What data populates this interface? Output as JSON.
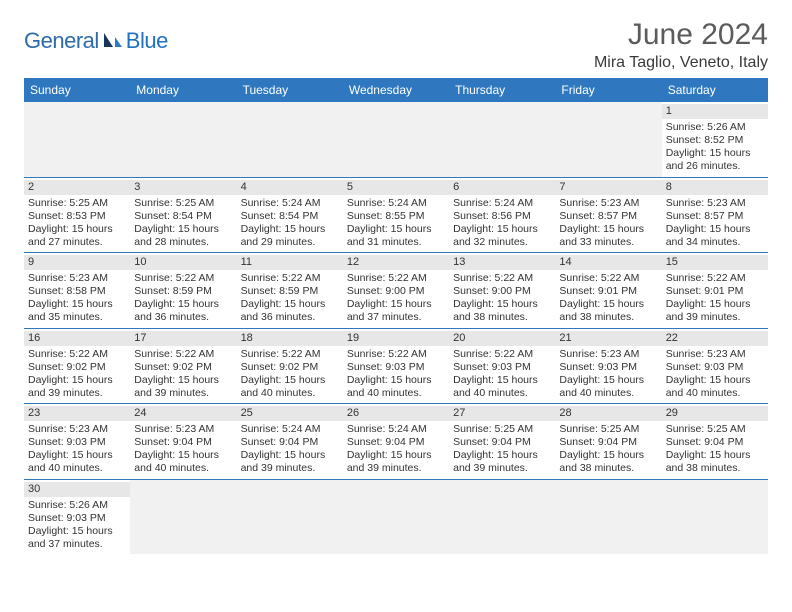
{
  "logo": {
    "text1": "General",
    "text2": "Blue"
  },
  "title": "June 2024",
  "location": "Mira Taglio, Veneto, Italy",
  "colors": {
    "header_bg": "#2f78bf",
    "header_text": "#ffffff",
    "daynum_bg": "#e7e7e7",
    "border": "#2f78bf",
    "title_color": "#5b5b5b",
    "logo_color1": "#2d6bab",
    "logo_color2": "#2072c0",
    "text": "#333333"
  },
  "day_headers": [
    "Sunday",
    "Monday",
    "Tuesday",
    "Wednesday",
    "Thursday",
    "Friday",
    "Saturday"
  ],
  "weeks": [
    [
      null,
      null,
      null,
      null,
      null,
      null,
      {
        "n": "1",
        "rise": "5:26 AM",
        "set": "8:52 PM",
        "dh": 15,
        "dm": 26
      }
    ],
    [
      {
        "n": "2",
        "rise": "5:25 AM",
        "set": "8:53 PM",
        "dh": 15,
        "dm": 27
      },
      {
        "n": "3",
        "rise": "5:25 AM",
        "set": "8:54 PM",
        "dh": 15,
        "dm": 28
      },
      {
        "n": "4",
        "rise": "5:24 AM",
        "set": "8:54 PM",
        "dh": 15,
        "dm": 29
      },
      {
        "n": "5",
        "rise": "5:24 AM",
        "set": "8:55 PM",
        "dh": 15,
        "dm": 31
      },
      {
        "n": "6",
        "rise": "5:24 AM",
        "set": "8:56 PM",
        "dh": 15,
        "dm": 32
      },
      {
        "n": "7",
        "rise": "5:23 AM",
        "set": "8:57 PM",
        "dh": 15,
        "dm": 33
      },
      {
        "n": "8",
        "rise": "5:23 AM",
        "set": "8:57 PM",
        "dh": 15,
        "dm": 34
      }
    ],
    [
      {
        "n": "9",
        "rise": "5:23 AM",
        "set": "8:58 PM",
        "dh": 15,
        "dm": 35
      },
      {
        "n": "10",
        "rise": "5:22 AM",
        "set": "8:59 PM",
        "dh": 15,
        "dm": 36
      },
      {
        "n": "11",
        "rise": "5:22 AM",
        "set": "8:59 PM",
        "dh": 15,
        "dm": 36
      },
      {
        "n": "12",
        "rise": "5:22 AM",
        "set": "9:00 PM",
        "dh": 15,
        "dm": 37
      },
      {
        "n": "13",
        "rise": "5:22 AM",
        "set": "9:00 PM",
        "dh": 15,
        "dm": 38
      },
      {
        "n": "14",
        "rise": "5:22 AM",
        "set": "9:01 PM",
        "dh": 15,
        "dm": 38
      },
      {
        "n": "15",
        "rise": "5:22 AM",
        "set": "9:01 PM",
        "dh": 15,
        "dm": 39
      }
    ],
    [
      {
        "n": "16",
        "rise": "5:22 AM",
        "set": "9:02 PM",
        "dh": 15,
        "dm": 39
      },
      {
        "n": "17",
        "rise": "5:22 AM",
        "set": "9:02 PM",
        "dh": 15,
        "dm": 39
      },
      {
        "n": "18",
        "rise": "5:22 AM",
        "set": "9:02 PM",
        "dh": 15,
        "dm": 40
      },
      {
        "n": "19",
        "rise": "5:22 AM",
        "set": "9:03 PM",
        "dh": 15,
        "dm": 40
      },
      {
        "n": "20",
        "rise": "5:22 AM",
        "set": "9:03 PM",
        "dh": 15,
        "dm": 40
      },
      {
        "n": "21",
        "rise": "5:23 AM",
        "set": "9:03 PM",
        "dh": 15,
        "dm": 40
      },
      {
        "n": "22",
        "rise": "5:23 AM",
        "set": "9:03 PM",
        "dh": 15,
        "dm": 40
      }
    ],
    [
      {
        "n": "23",
        "rise": "5:23 AM",
        "set": "9:03 PM",
        "dh": 15,
        "dm": 40
      },
      {
        "n": "24",
        "rise": "5:23 AM",
        "set": "9:04 PM",
        "dh": 15,
        "dm": 40
      },
      {
        "n": "25",
        "rise": "5:24 AM",
        "set": "9:04 PM",
        "dh": 15,
        "dm": 39
      },
      {
        "n": "26",
        "rise": "5:24 AM",
        "set": "9:04 PM",
        "dh": 15,
        "dm": 39
      },
      {
        "n": "27",
        "rise": "5:25 AM",
        "set": "9:04 PM",
        "dh": 15,
        "dm": 39
      },
      {
        "n": "28",
        "rise": "5:25 AM",
        "set": "9:04 PM",
        "dh": 15,
        "dm": 38
      },
      {
        "n": "29",
        "rise": "5:25 AM",
        "set": "9:04 PM",
        "dh": 15,
        "dm": 38
      }
    ],
    [
      {
        "n": "30",
        "rise": "5:26 AM",
        "set": "9:03 PM",
        "dh": 15,
        "dm": 37
      },
      null,
      null,
      null,
      null,
      null,
      null
    ]
  ],
  "labels": {
    "sunrise": "Sunrise:",
    "sunset": "Sunset:",
    "daylight_prefix": "Daylight:",
    "hours_word": "hours",
    "and_word": "and",
    "minutes_word": "minutes."
  }
}
